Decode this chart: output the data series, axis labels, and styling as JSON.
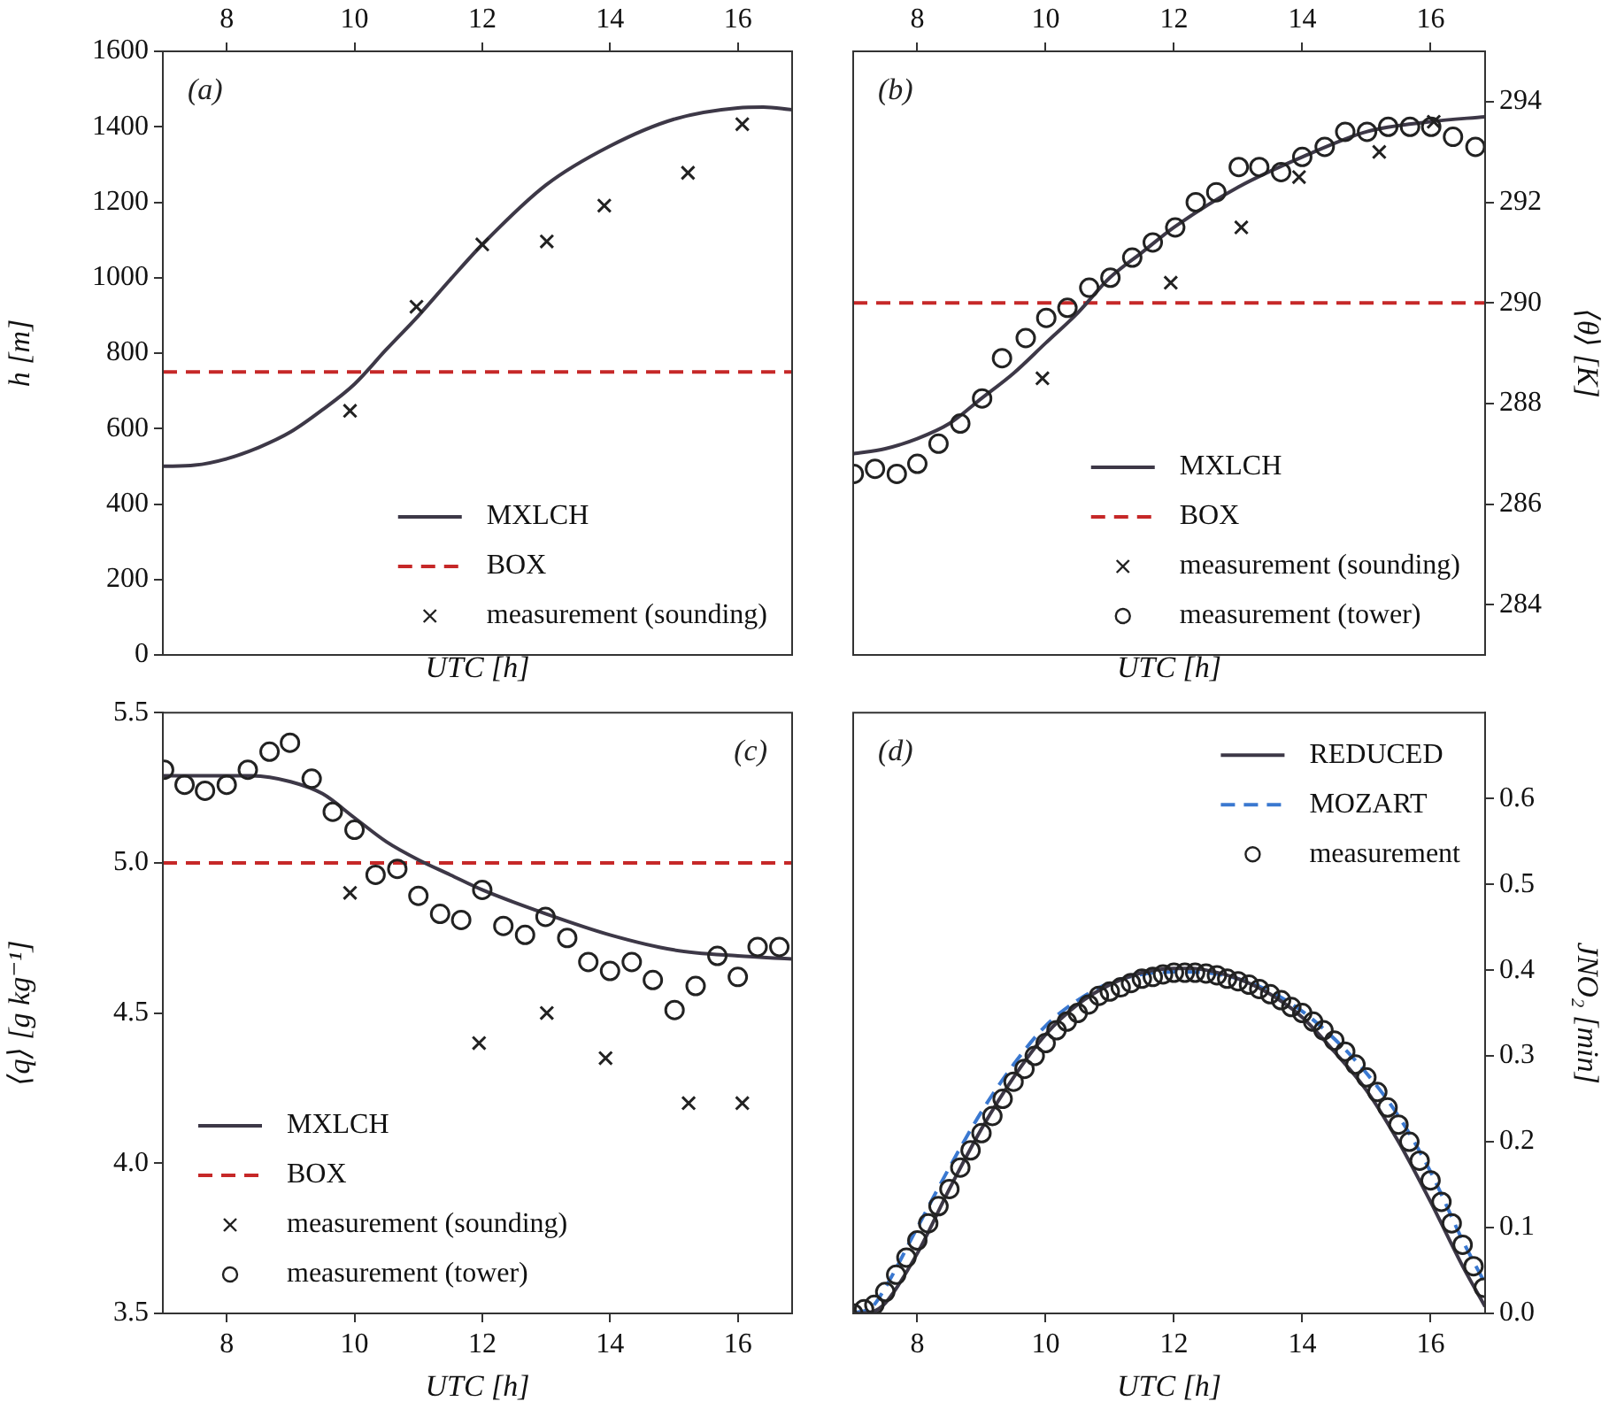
{
  "chart_data": [
    {
      "type": "line",
      "xlabel": "UTC [h]",
      "ylabel": "h [m]",
      "annotations": [
        "(a)"
      ],
      "legend": "bottom right",
      "xlim": [
        7,
        16.85
      ],
      "xticks": [
        8,
        10,
        12,
        14,
        16
      ],
      "ylim": [
        0,
        1600
      ],
      "yticks": [
        0,
        200,
        400,
        600,
        800,
        1000,
        1200,
        1400,
        1600
      ],
      "series": [
        {
          "name": "MXLCH",
          "color": "#3d3847",
          "x": [
            7,
            7.5,
            8,
            8.5,
            9,
            9.5,
            10,
            10.5,
            11,
            11.5,
            12,
            13,
            14,
            15,
            16,
            16.4,
            16.85
          ],
          "values": [
            500,
            503,
            520,
            550,
            591,
            650,
            718,
            810,
            899,
            995,
            1088,
            1246,
            1349,
            1420,
            1450,
            1452,
            1445
          ]
        },
        {
          "name": "BOX",
          "color": "#c62828",
          "line_style": "dashed",
          "x": [
            7,
            16.85
          ],
          "values": [
            750,
            750
          ]
        },
        {
          "name": "measurement (sounding)",
          "type": "scatter",
          "marker": "cross",
          "color": "#222222",
          "x": [
            9.93,
            10.97,
            12.0,
            13.01,
            13.91,
            15.22,
            16.07
          ],
          "values": [
            647,
            923,
            1088,
            1096,
            1191,
            1278,
            1407
          ]
        }
      ]
    },
    {
      "type": "line",
      "xlabel": "UTC [h]",
      "y2label": "⟨θ⟩ [K]",
      "annotations": [
        "(b)"
      ],
      "legend": "bottom right",
      "xlim": [
        7,
        16.85
      ],
      "xticks": [
        8,
        10,
        12,
        14,
        16
      ],
      "y2lim": [
        283,
        295
      ],
      "y2ticks": [
        284,
        286,
        288,
        290,
        292,
        294
      ],
      "series": [
        {
          "name": "MXLCH",
          "color": "#3d3847",
          "axis": "y2",
          "x": [
            7,
            7.5,
            8,
            8.5,
            9,
            9.5,
            10,
            10.5,
            11,
            11.5,
            12,
            13,
            14,
            15,
            16,
            16.85
          ],
          "values": [
            287.0,
            287.1,
            287.3,
            287.6,
            288.1,
            288.6,
            289.2,
            289.8,
            290.5,
            291.0,
            291.5,
            292.3,
            292.9,
            293.4,
            293.6,
            293.7
          ]
        },
        {
          "name": "BOX",
          "color": "#c62828",
          "line_style": "dashed",
          "axis": "y2",
          "x": [
            7,
            16.85
          ],
          "values": [
            290,
            290
          ]
        },
        {
          "name": "measurement (sounding)",
          "type": "scatter",
          "marker": "cross",
          "color": "#222222",
          "axis": "y2",
          "x": [
            9.95,
            11.95,
            13.05,
            13.95,
            15.2,
            16.05
          ],
          "values": [
            288.5,
            290.4,
            291.5,
            292.5,
            293.0,
            293.6
          ]
        },
        {
          "name": "measurement (tower)",
          "type": "scatter",
          "marker": "circle",
          "color": "#222222",
          "axis": "y2",
          "x": [
            7.01,
            7.34,
            7.68,
            8.0,
            8.33,
            8.67,
            9.01,
            9.32,
            9.69,
            10.01,
            10.34,
            10.68,
            11.01,
            11.35,
            11.67,
            12.02,
            12.34,
            12.66,
            13.01,
            13.33,
            13.67,
            14.0,
            14.35,
            14.67,
            15.01,
            15.34,
            15.68,
            16.01,
            16.35,
            16.7
          ],
          "values": [
            286.6,
            286.7,
            286.6,
            286.8,
            287.2,
            287.6,
            288.1,
            288.9,
            289.3,
            289.7,
            289.9,
            290.3,
            290.5,
            290.9,
            291.2,
            291.5,
            292.0,
            292.2,
            292.7,
            292.7,
            292.6,
            292.9,
            293.1,
            293.4,
            293.4,
            293.5,
            293.5,
            293.5,
            293.3,
            293.1
          ]
        }
      ]
    },
    {
      "type": "line",
      "xlabel": "UTC [h]",
      "ylabel": "⟨q⟩ [g kg⁻¹]",
      "annotations": [
        "(c)"
      ],
      "legend": "bottom left",
      "xlim": [
        7,
        16.85
      ],
      "xticks": [
        8,
        10,
        12,
        14,
        16
      ],
      "ylim": [
        3.5,
        5.5
      ],
      "yticks": [
        3.5,
        {
          "value": 4,
          "label": "4.0"
        },
        4.5,
        {
          "value": 5,
          "label": "5.0"
        },
        5.5
      ],
      "series": [
        {
          "name": "MXLCH",
          "color": "#3d3847",
          "x": [
            7,
            8,
            8.4,
            9,
            9.5,
            10,
            10.5,
            11,
            11.5,
            12,
            13,
            14,
            15,
            16,
            16.85
          ],
          "values": [
            5.29,
            5.29,
            5.29,
            5.27,
            5.23,
            5.15,
            5.07,
            5.01,
            4.96,
            4.91,
            4.83,
            4.76,
            4.71,
            4.69,
            4.68
          ]
        },
        {
          "name": "BOX",
          "color": "#c62828",
          "line_style": "dashed",
          "x": [
            7,
            16.85
          ],
          "values": [
            5.0,
            5.0
          ]
        },
        {
          "name": "measurement (sounding)",
          "type": "scatter",
          "marker": "cross",
          "color": "#222222",
          "x": [
            9.93,
            11.95,
            13.01,
            13.93,
            15.23,
            16.07
          ],
          "values": [
            4.9,
            4.4,
            4.5,
            4.35,
            4.2,
            4.2
          ]
        },
        {
          "name": "measurement (tower)",
          "type": "scatter",
          "marker": "circle",
          "color": "#222222",
          "x": [
            7.02,
            7.34,
            7.66,
            8.0,
            8.33,
            8.67,
            8.99,
            9.33,
            9.66,
            10.0,
            10.33,
            10.67,
            11.0,
            11.34,
            11.67,
            12.0,
            12.33,
            12.67,
            12.99,
            13.33,
            13.66,
            14.0,
            14.34,
            14.67,
            15.01,
            15.34,
            15.68,
            16.0,
            16.31,
            16.65
          ],
          "values": [
            5.31,
            5.26,
            5.24,
            5.26,
            5.31,
            5.37,
            5.4,
            5.28,
            5.17,
            5.11,
            4.96,
            4.98,
            4.89,
            4.83,
            4.81,
            4.91,
            4.79,
            4.76,
            4.82,
            4.75,
            4.67,
            4.64,
            4.67,
            4.61,
            4.51,
            4.59,
            4.69,
            4.62,
            4.72,
            4.72
          ]
        }
      ]
    },
    {
      "type": "line",
      "xlabel": "UTC [h]",
      "y2label": "JNO₂ [min]",
      "annotations": [
        "(d)"
      ],
      "legend": "top right",
      "xlim": [
        7,
        16.85
      ],
      "xticks": [
        8,
        10,
        12,
        14,
        16
      ],
      "y2lim": [
        0,
        0.7
      ],
      "y2ticks": [
        {
          "value": 0,
          "label": "0.0"
        },
        0.1,
        0.2,
        0.3,
        0.4,
        0.5,
        0.6
      ],
      "series": [
        {
          "name": "REDUCED",
          "color": "#3d3847",
          "axis": "y2",
          "x": [
            7,
            7.3,
            7.5,
            8,
            8.5,
            9,
            9.5,
            10,
            10.5,
            11,
            11.5,
            12,
            12.3,
            12.5,
            13,
            13.5,
            14,
            14.5,
            15,
            15.5,
            16,
            16.5,
            16.85
          ],
          "values": [
            0,
            0.002,
            0.012,
            0.07,
            0.145,
            0.215,
            0.275,
            0.325,
            0.36,
            0.383,
            0.397,
            0.402,
            0.402,
            0.4,
            0.39,
            0.372,
            0.345,
            0.305,
            0.26,
            0.2,
            0.13,
            0.055,
            0.008
          ]
        },
        {
          "name": "MOZART",
          "color": "#3a78d0",
          "line_style": "dashed",
          "axis": "y2",
          "x": [
            7,
            7.3,
            7.5,
            8,
            8.5,
            9,
            9.5,
            10,
            10.5,
            11,
            11.5,
            12,
            12.5,
            13,
            13.5,
            14,
            14.5,
            15,
            15.5,
            16,
            16.5,
            16.85
          ],
          "values": [
            0,
            0.008,
            0.03,
            0.1,
            0.17,
            0.235,
            0.29,
            0.335,
            0.365,
            0.385,
            0.395,
            0.398,
            0.397,
            0.39,
            0.375,
            0.352,
            0.32,
            0.28,
            0.23,
            0.165,
            0.085,
            0.035
          ]
        },
        {
          "name": "measurement",
          "type": "scatter",
          "marker": "circle",
          "color": "#222222",
          "axis": "y2",
          "x": [
            7.0,
            7.17,
            7.33,
            7.5,
            7.67,
            7.83,
            8.0,
            8.17,
            8.33,
            8.5,
            8.67,
            8.83,
            9.0,
            9.17,
            9.33,
            9.5,
            9.67,
            9.83,
            10.0,
            10.17,
            10.33,
            10.5,
            10.67,
            10.83,
            11.0,
            11.17,
            11.33,
            11.5,
            11.67,
            11.83,
            12.0,
            12.17,
            12.33,
            12.5,
            12.67,
            12.83,
            13.0,
            13.17,
            13.33,
            13.5,
            13.67,
            13.83,
            14.0,
            14.17,
            14.33,
            14.5,
            14.67,
            14.83,
            15.0,
            15.17,
            15.33,
            15.5,
            15.67,
            15.83,
            16.0,
            16.17,
            16.33,
            16.5,
            16.67,
            16.83
          ],
          "values": [
            0.0,
            0.005,
            0.01,
            0.025,
            0.045,
            0.065,
            0.085,
            0.105,
            0.125,
            0.145,
            0.17,
            0.19,
            0.21,
            0.23,
            0.25,
            0.27,
            0.285,
            0.3,
            0.315,
            0.33,
            0.34,
            0.35,
            0.36,
            0.37,
            0.375,
            0.38,
            0.385,
            0.39,
            0.392,
            0.395,
            0.397,
            0.397,
            0.397,
            0.396,
            0.394,
            0.39,
            0.387,
            0.383,
            0.378,
            0.372,
            0.365,
            0.357,
            0.35,
            0.34,
            0.33,
            0.318,
            0.305,
            0.29,
            0.275,
            0.258,
            0.24,
            0.22,
            0.2,
            0.178,
            0.155,
            0.13,
            0.105,
            0.08,
            0.055,
            0.03
          ]
        }
      ]
    }
  ]
}
